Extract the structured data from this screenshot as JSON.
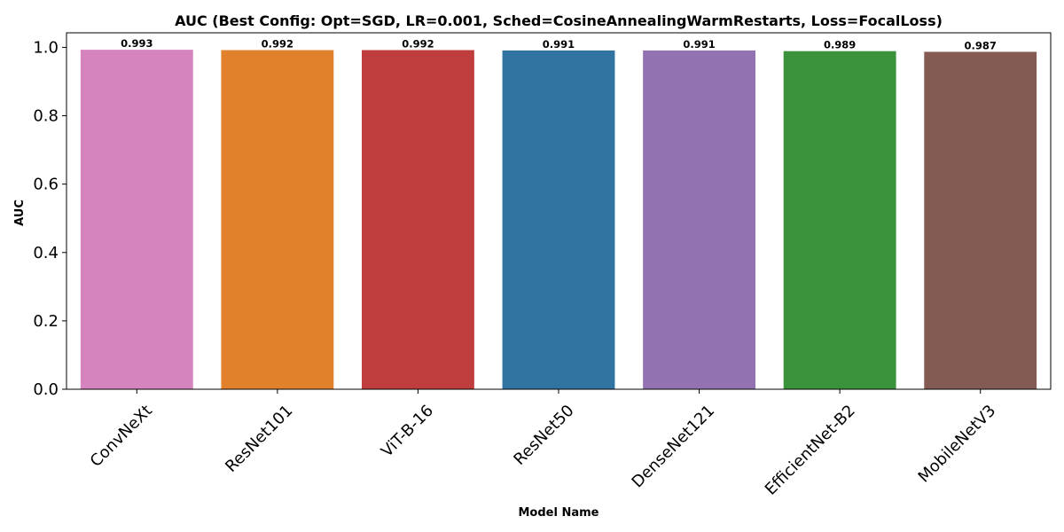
{
  "chart_data": {
    "type": "bar",
    "title": "AUC (Best Config: Opt=SGD, LR=0.001, Sched=CosineAnnealingWarmRestarts, Loss=FocalLoss)",
    "xlabel": "Model Name",
    "ylabel": "AUC",
    "categories": [
      "ConvNeXt",
      "ResNet101",
      "ViT-B-16",
      "ResNet50",
      "DenseNet121",
      "EfficientNet-B2",
      "MobileNetV3"
    ],
    "values": [
      0.993,
      0.992,
      0.992,
      0.991,
      0.991,
      0.989,
      0.987
    ],
    "value_labels": [
      "0.993",
      "0.992",
      "0.992",
      "0.991",
      "0.991",
      "0.989",
      "0.987"
    ],
    "colors": [
      "#d684bd",
      "#e1812c",
      "#c03d3e",
      "#3274a1",
      "#9372b2",
      "#3a923a",
      "#845b53"
    ],
    "yticks": [
      0.0,
      0.2,
      0.4,
      0.6,
      0.8,
      1.0
    ],
    "ytick_labels": [
      "0.0",
      "0.2",
      "0.4",
      "0.6",
      "0.8",
      "1.0"
    ],
    "ylim": [
      0,
      1.0426
    ],
    "grid": false,
    "legend": "none"
  }
}
